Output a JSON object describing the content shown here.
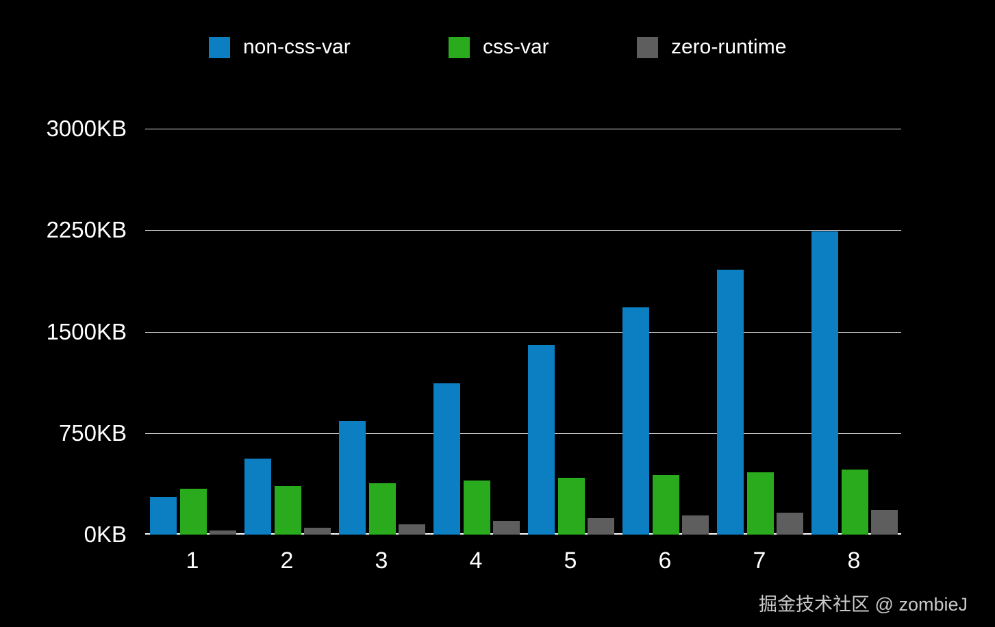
{
  "watermark": {
    "text": "掘金技术社区 @ zombieJ"
  },
  "colors": {
    "background": "#000000",
    "axis_text": "#ffffff",
    "gridline": "#ffffff",
    "watermark_text": "#c9c9c9",
    "non_css_var": "#0c7fc2",
    "css_var": "#29ab1d",
    "zero_runtime": "#5e5e5e"
  },
  "chart_data": {
    "type": "bar",
    "title": "",
    "unit": "KB",
    "categories": [
      "1",
      "2",
      "3",
      "4",
      "5",
      "6",
      "7",
      "8"
    ],
    "series": [
      {
        "name": "non-css-var",
        "color": "#0c7fc2",
        "values": [
          280,
          560,
          840,
          1120,
          1400,
          1680,
          1960,
          2240
        ]
      },
      {
        "name": "css-var",
        "color": "#29ab1d",
        "values": [
          340,
          360,
          380,
          400,
          420,
          440,
          460,
          480
        ]
      },
      {
        "name": "zero-runtime",
        "color": "#5e5e5e",
        "values": [
          30,
          50,
          75,
          100,
          120,
          140,
          160,
          180
        ]
      }
    ],
    "y_ticks": [
      {
        "value": 0,
        "label": "0KB"
      },
      {
        "value": 750,
        "label": "750KB"
      },
      {
        "value": 1500,
        "label": "1500KB"
      },
      {
        "value": 2250,
        "label": "2250KB"
      },
      {
        "value": 3000,
        "label": "3000KB"
      }
    ],
    "ylim": [
      0,
      3000
    ],
    "grid": true,
    "legend_position": "top"
  }
}
